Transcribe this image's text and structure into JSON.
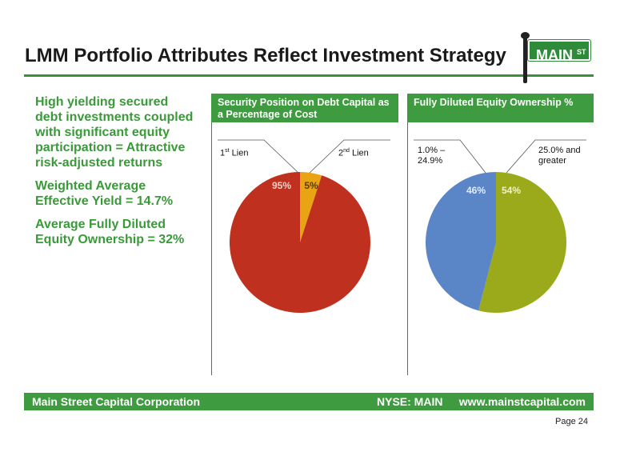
{
  "header": {
    "title": "LMM Portfolio Attributes Reflect Investment Strategy",
    "logo_text": "MAIN",
    "logo_sup": "ST"
  },
  "left": {
    "p1": "High yielding secured debt investments coupled with significant equity participation = Attractive risk-adjusted returns",
    "p2": "Weighted Average Effective Yield = 14.7%",
    "p3": "Average Fully Diluted Equity Ownership = 32%"
  },
  "panels": {
    "security_title": "Security Position on Debt Capital as a Percentage of Cost",
    "equity_title": "Fully Diluted Equity Ownership %"
  },
  "labels": {
    "first_lien_base": "1",
    "first_lien_sup": "st",
    "first_lien_rest": " Lien",
    "second_lien_base": "2",
    "second_lien_sup": "nd",
    "second_lien_rest": " Lien",
    "low_range": "1.0% –\n24.9%",
    "high_range": "25.0% and\ngreater"
  },
  "chart_data": [
    {
      "type": "pie",
      "title": "Security Position on Debt Capital as a Percentage of Cost",
      "categories": [
        "1st Lien",
        "2nd Lien"
      ],
      "values": [
        95,
        5
      ],
      "data_labels": [
        "95%",
        "5%"
      ],
      "colors": [
        "#c0301f",
        "#e8a412"
      ]
    },
    {
      "type": "pie",
      "title": "Fully Diluted Equity Ownership %",
      "categories": [
        "1.0% – 24.9%",
        "25.0% and greater"
      ],
      "values": [
        46,
        54
      ],
      "data_labels": [
        "46%",
        "54%"
      ],
      "colors": [
        "#5a86c8",
        "#9aaa1b"
      ]
    }
  ],
  "footer": {
    "company": "Main Street Capital Corporation",
    "ticker": "NYSE: MAIN",
    "url": "www.mainstcapital.com",
    "page": "Page 24"
  }
}
